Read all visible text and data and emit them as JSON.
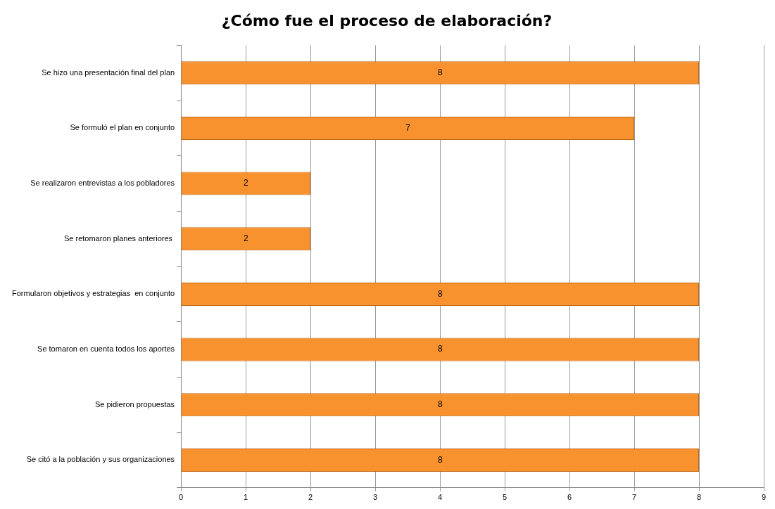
{
  "chart_data": {
    "type": "bar",
    "title": "¿Cómo fue el proceso de elaboración?",
    "orientation": "horizontal",
    "categories": [
      "Se hizo una presentación final del plan",
      "Se formuló el plan en conjunto",
      "Se realizaron entrevistas a los pobladores",
      "Se retomaron planes anteriores ",
      "Formularon objetivos y estrategias  en conjunto",
      "Se tomaron en cuenta todos los aportes",
      "Se pidieron propuestas",
      "Se citó a la población y sus organizaciones"
    ],
    "values": [
      8,
      7,
      2,
      2,
      8,
      8,
      8,
      8
    ],
    "color": "#f7922e",
    "xlim": [
      0,
      9
    ],
    "xticks": [
      0,
      1,
      2,
      3,
      4,
      5,
      6,
      7,
      8,
      9
    ],
    "grid": "x",
    "data_labels": true,
    "legend": false
  }
}
